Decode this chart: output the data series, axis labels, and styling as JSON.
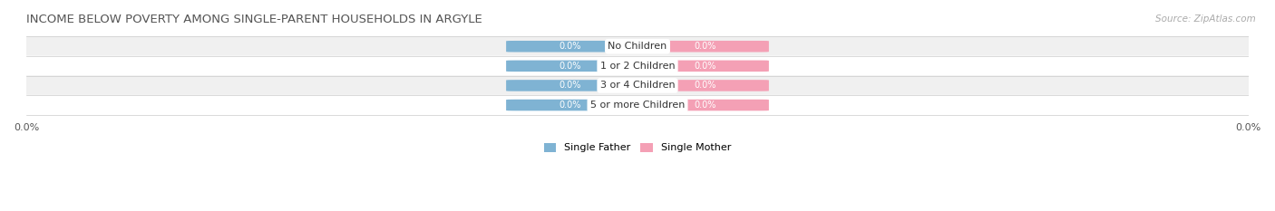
{
  "title": "INCOME BELOW POVERTY AMONG SINGLE-PARENT HOUSEHOLDS IN ARGYLE",
  "source": "Source: ZipAtlas.com",
  "categories": [
    "No Children",
    "1 or 2 Children",
    "3 or 4 Children",
    "5 or more Children"
  ],
  "father_values": [
    0.0,
    0.0,
    0.0,
    0.0
  ],
  "mother_values": [
    0.0,
    0.0,
    0.0,
    0.0
  ],
  "father_color": "#7fb3d3",
  "mother_color": "#f4a0b5",
  "row_bg_colors": [
    "#f0f0f0",
    "#ffffff"
  ],
  "title_color": "#555555",
  "label_color": "#555555",
  "value_text_color": "#ffffff",
  "category_text_color": "#333333",
  "legend_father": "Single Father",
  "legend_mother": "Single Mother",
  "figsize": [
    14.06,
    2.33
  ],
  "dpi": 100
}
